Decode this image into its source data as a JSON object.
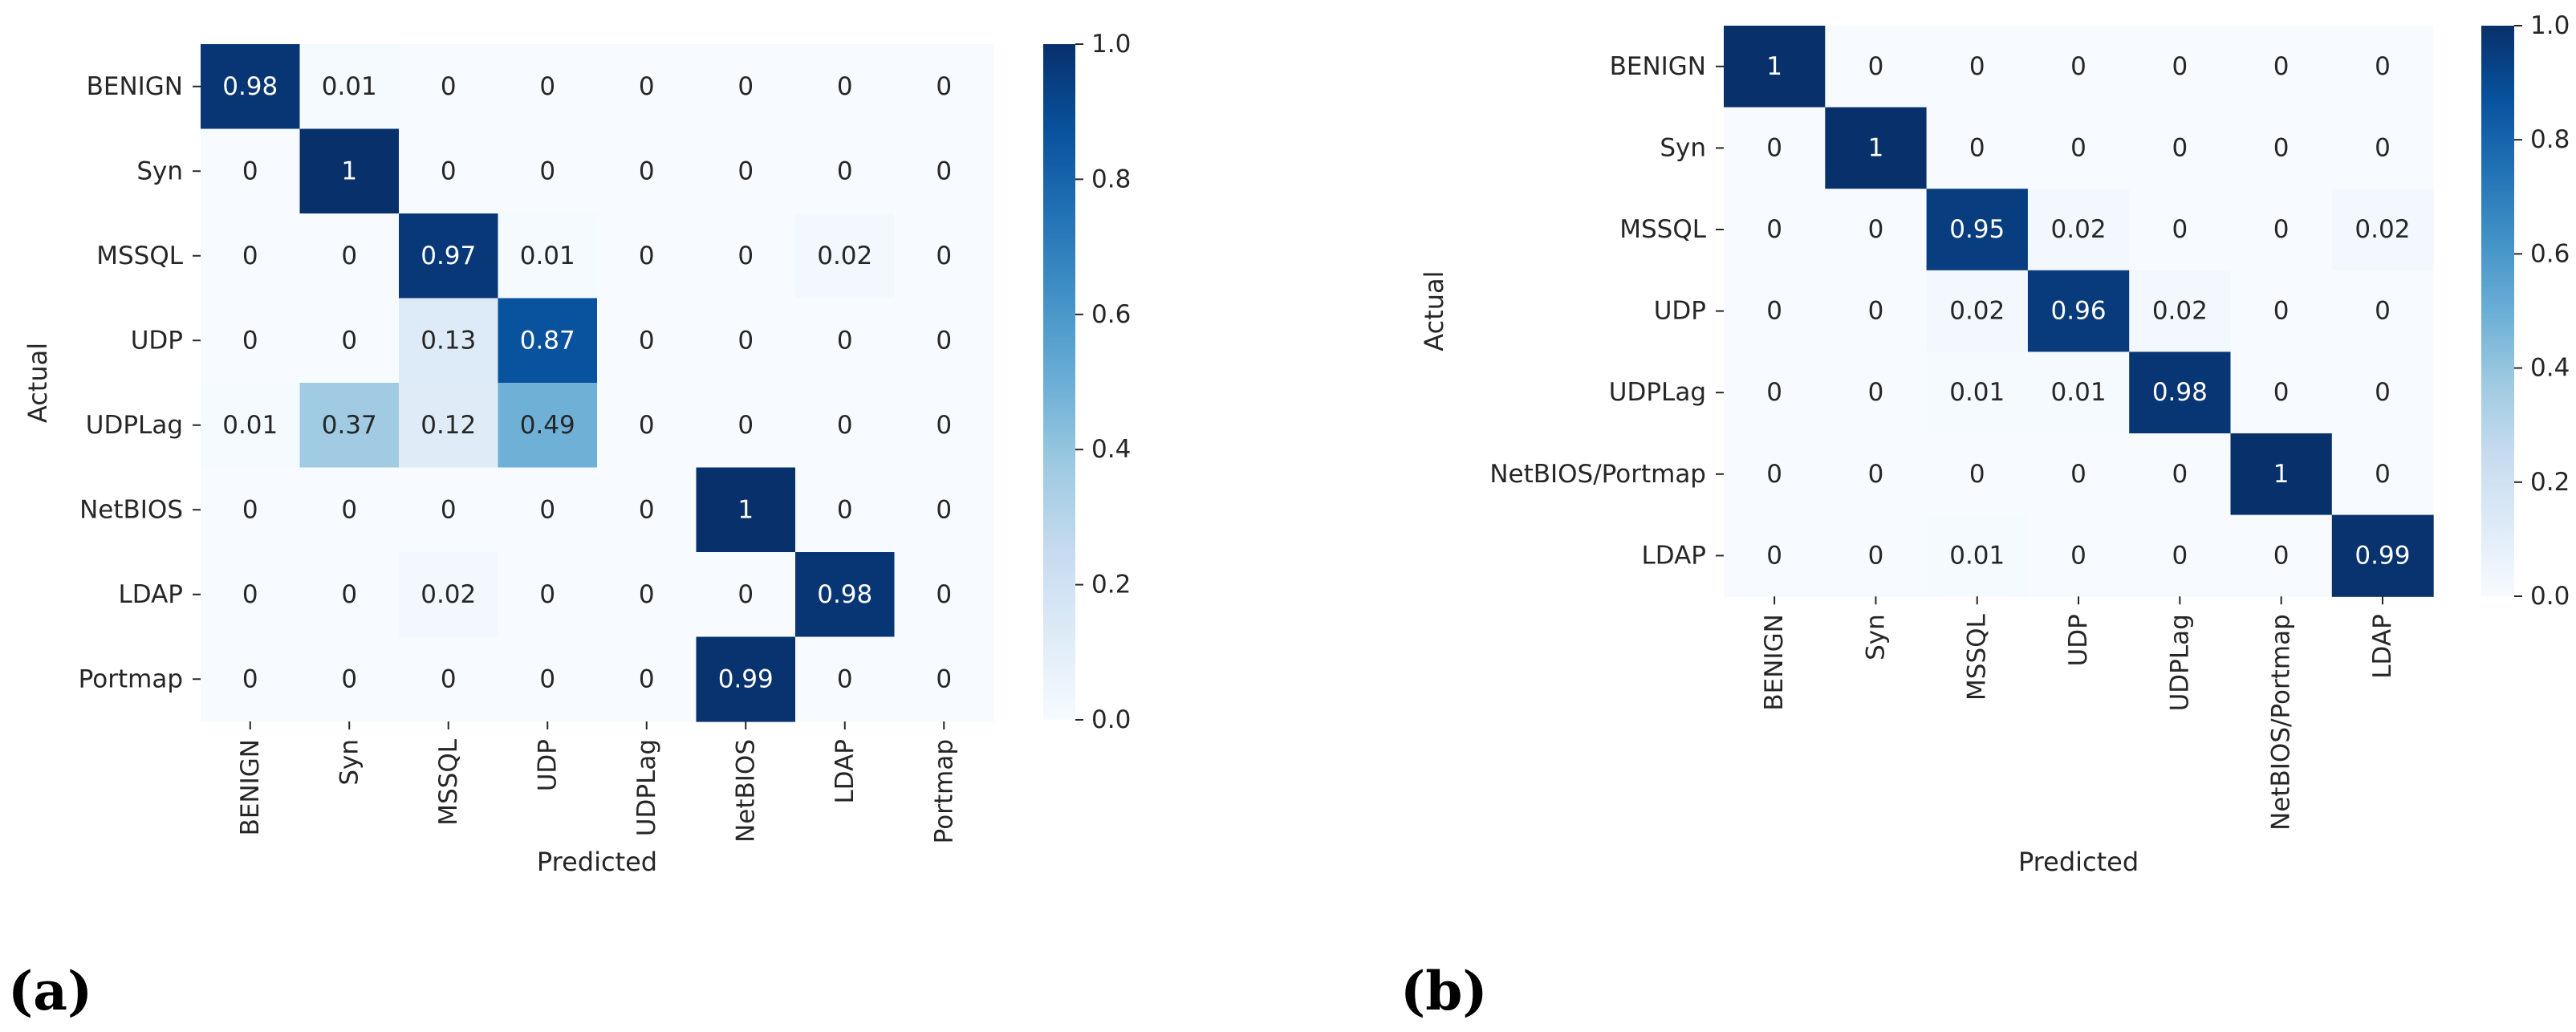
{
  "chart_data": [
    {
      "type": "heatmap",
      "panel_label": "(a)",
      "xlabel": "Predicted",
      "ylabel": "Actual",
      "x_categories": [
        "BENIGN",
        "Syn",
        "MSSQL",
        "UDP",
        "UDPLag",
        "NetBIOS",
        "LDAP",
        "Portmap"
      ],
      "y_categories": [
        "BENIGN",
        "Syn",
        "MSSQL",
        "UDP",
        "UDPLag",
        "NetBIOS",
        "LDAP",
        "Portmap"
      ],
      "values": [
        [
          0.98,
          0.01,
          0,
          0,
          0,
          0,
          0,
          0
        ],
        [
          0,
          1,
          0,
          0,
          0,
          0,
          0,
          0
        ],
        [
          0,
          0,
          0.97,
          0.01,
          0,
          0,
          0.02,
          0
        ],
        [
          0,
          0,
          0.13,
          0.87,
          0,
          0,
          0,
          0
        ],
        [
          0.01,
          0.37,
          0.12,
          0.49,
          0,
          0,
          0,
          0
        ],
        [
          0,
          0,
          0,
          0,
          0,
          1,
          0,
          0
        ],
        [
          0,
          0,
          0.02,
          0,
          0,
          0,
          0.98,
          0
        ],
        [
          0,
          0,
          0,
          0,
          0,
          0.99,
          0,
          0
        ]
      ],
      "colorbar": {
        "range": [
          0.0,
          1.0
        ],
        "ticks": [
          "0.0",
          "0.2",
          "0.4",
          "0.6",
          "0.8",
          "1.0"
        ],
        "colormap": "Blues"
      }
    },
    {
      "type": "heatmap",
      "panel_label": "(b)",
      "xlabel": "Predicted",
      "ylabel": "Actual",
      "x_categories": [
        "BENIGN",
        "Syn",
        "MSSQL",
        "UDP",
        "UDPLag",
        "NetBIOS/Portmap",
        "LDAP"
      ],
      "y_categories": [
        "BENIGN",
        "Syn",
        "MSSQL",
        "UDP",
        "UDPLag",
        "NetBIOS/Portmap",
        "LDAP"
      ],
      "values": [
        [
          1,
          0,
          0,
          0,
          0,
          0,
          0
        ],
        [
          0,
          1,
          0,
          0,
          0,
          0,
          0
        ],
        [
          0,
          0,
          0.95,
          0.02,
          0,
          0,
          0.02
        ],
        [
          0,
          0,
          0.02,
          0.96,
          0.02,
          0,
          0
        ],
        [
          0,
          0,
          0.01,
          0.01,
          0.98,
          0,
          0
        ],
        [
          0,
          0,
          0,
          0,
          0,
          1,
          0
        ],
        [
          0,
          0,
          0.01,
          0,
          0,
          0,
          0.99
        ]
      ],
      "colorbar": {
        "range": [
          0.0,
          1.0
        ],
        "ticks": [
          "0.0",
          "0.2",
          "0.4",
          "0.6",
          "0.8",
          "1.0"
        ],
        "colormap": "Blues"
      }
    }
  ]
}
